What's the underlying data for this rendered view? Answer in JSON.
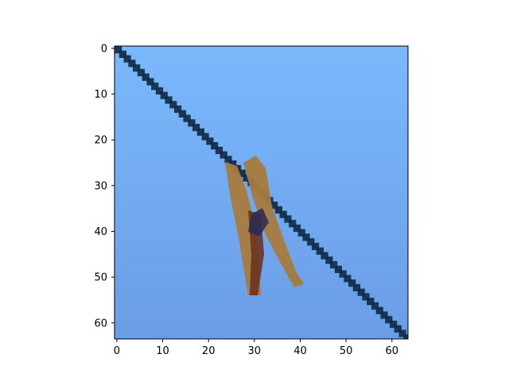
{
  "image": {
    "grid_size": [
      64,
      64
    ],
    "subject": "wooden clothespin hanging on a diagonal wire against blue sky",
    "colors": {
      "sky_top": "#7ab8fb",
      "sky_bottom": "#6a9de6",
      "wire": "#0f2a44",
      "clothespin": "#a87a3c",
      "clothespin_shadow": "#6b2e1c"
    }
  },
  "axes": {
    "x_ticks": [
      "0",
      "10",
      "20",
      "30",
      "40",
      "50",
      "60"
    ],
    "y_ticks": [
      "0",
      "10",
      "20",
      "30",
      "40",
      "50",
      "60"
    ],
    "x_range": [
      -0.5,
      63.5
    ],
    "y_range": [
      -0.5,
      63.5
    ]
  }
}
